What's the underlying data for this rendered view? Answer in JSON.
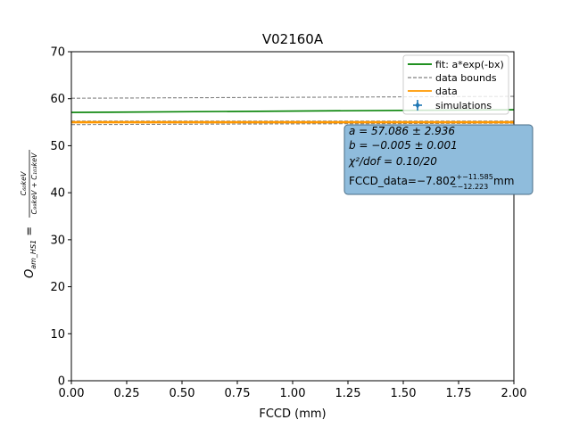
{
  "chart_data": {
    "type": "line",
    "title": "V02160A",
    "xlabel": "FCCD (mm)",
    "ylabel": {
      "lhs_main": "O",
      "lhs_sub": "am_HS1",
      "eq": " = ",
      "numerator": "C₆₀keV",
      "denominator": "C₉₉keV + C₁₀₃keV"
    },
    "xlim": [
      0.0,
      2.0
    ],
    "ylim": [
      0,
      70
    ],
    "xticks": [
      0.0,
      0.25,
      0.5,
      0.75,
      1.0,
      1.25,
      1.5,
      1.75,
      2.0
    ],
    "xtick_labels": [
      "0.00",
      "0.25",
      "0.50",
      "0.75",
      "1.00",
      "1.25",
      "1.50",
      "1.75",
      "2.00"
    ],
    "yticks": [
      0,
      10,
      20,
      30,
      40,
      50,
      60,
      70
    ],
    "ytick_labels": [
      "0",
      "10",
      "20",
      "30",
      "40",
      "50",
      "60",
      "70"
    ],
    "grid": false,
    "legend_position": "top-right",
    "legend": [
      {
        "label": "fit: a*exp(-bx)",
        "style": "solid",
        "color": "#008000"
      },
      {
        "label": "data bounds",
        "style": "dashed",
        "color": "#808080"
      },
      {
        "label": "data",
        "style": "solid",
        "color": "#ff9900"
      },
      {
        "label": "simulations",
        "style": "marker",
        "color": "#1f77b4"
      }
    ],
    "series": [
      {
        "name": "fit: a*exp(-bx)",
        "color": "#008000",
        "style": "solid",
        "x": [
          0.0,
          2.0
        ],
        "y": [
          57.086,
          57.66
        ]
      },
      {
        "name": "data bounds",
        "color": "#808080",
        "style": "dashed",
        "x": [
          0.0,
          2.0
        ],
        "y": [
          60.1,
          60.5
        ]
      },
      {
        "name": "",
        "color": "#808080",
        "style": "dashed",
        "x": [
          0.0,
          2.0
        ],
        "y": [
          55.25,
          55.25
        ]
      },
      {
        "name": "",
        "color": "#808080",
        "style": "dashed",
        "x": [
          0.0,
          2.0
        ],
        "y": [
          54.5,
          54.8
        ]
      },
      {
        "name": "data",
        "color": "#ff9900",
        "style": "solid",
        "x": [
          0.0,
          2.0
        ],
        "y": [
          54.9,
          54.9
        ]
      },
      {
        "name": "",
        "color": "#ff9900",
        "style": "solid",
        "x": [
          0.0,
          2.0
        ],
        "y": [
          55.1,
          55.1
        ]
      }
    ],
    "annotation": {
      "line1": "a = 57.086 ± 2.936",
      "line2": "b = −0.005 ± 0.001",
      "line3": "χ²/dof = 0.10/20",
      "line4_prefix": "FCCD_data=−7.802",
      "line4_sup": "+−11.585",
      "line4_sub": "−−12.223",
      "line4_suffix": " mm",
      "box_face": "#8fbcdc",
      "box_edge": "#4a6d86"
    }
  }
}
